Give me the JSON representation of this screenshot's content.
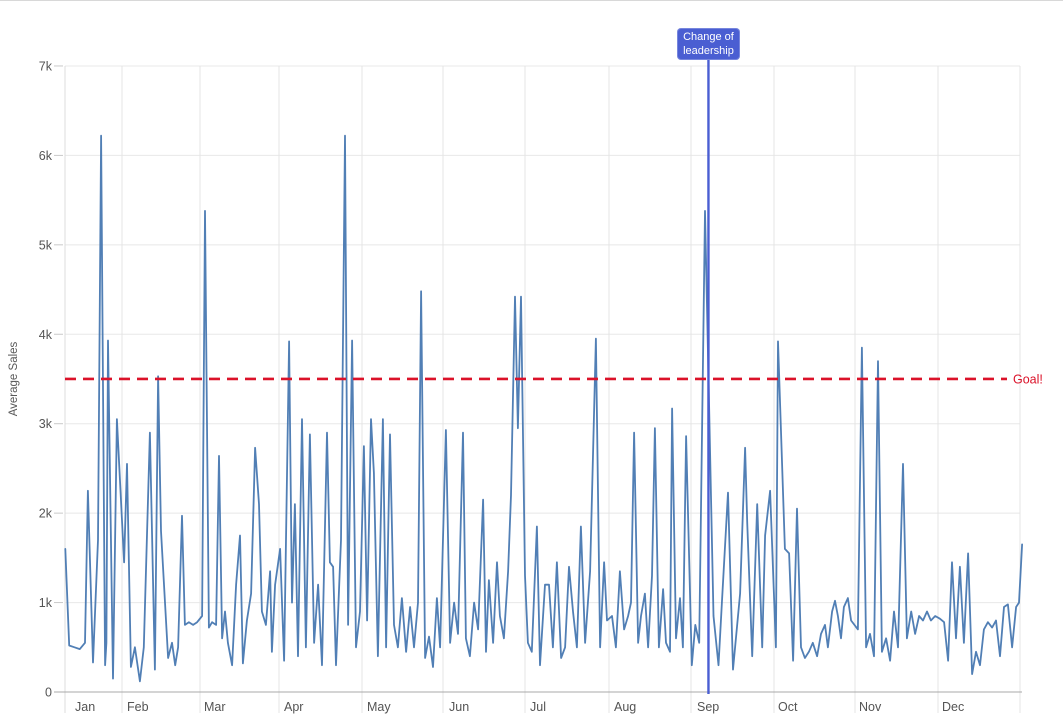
{
  "chart_data": {
    "type": "line",
    "title": "",
    "ylabel": "Average Sales",
    "value_unit": "thousands (k)",
    "grid": true,
    "legend": "none",
    "x_axis": {
      "unit": "day-of-year",
      "months": [
        "Jan",
        "Feb",
        "Mar",
        "Apr",
        "May",
        "Jun",
        "Jul",
        "Aug",
        "Sep",
        "Oct",
        "Nov",
        "Dec"
      ]
    },
    "y_axis": {
      "min": 0,
      "max": 7000,
      "tick_labels": [
        "0",
        "1k",
        "2k",
        "3k",
        "4k",
        "5k",
        "6k",
        "7k"
      ]
    },
    "reference_lines": [
      {
        "label": "Goal!",
        "value": 3.5,
        "color": "#db1229",
        "style": "dashed"
      }
    ],
    "annotations": [
      {
        "label": "Change of leadership",
        "day": 246,
        "color": "#4a5ed2"
      }
    ],
    "series": [
      {
        "name": "Average Sales",
        "color": "#4878b1",
        "points": [
          [
            2,
            1.6
          ],
          [
            3.5,
            0.52
          ],
          [
            5.5,
            0.5
          ],
          [
            7.5,
            0.48
          ],
          [
            9.5,
            0.55
          ],
          [
            10.6,
            2.25
          ],
          [
            12.5,
            0.33
          ],
          [
            14.4,
            1.7
          ],
          [
            15.6,
            6.22
          ],
          [
            17.1,
            0.3
          ],
          [
            17.6,
            0.55
          ],
          [
            18.2,
            3.93
          ],
          [
            20.1,
            0.15
          ],
          [
            21.6,
            3.05
          ],
          [
            24.3,
            1.45
          ],
          [
            25.4,
            2.55
          ],
          [
            26.9,
            0.28
          ],
          [
            28.4,
            0.5
          ],
          [
            30.3,
            0.12
          ],
          [
            31.8,
            0.5
          ],
          [
            34.1,
            2.9
          ],
          [
            36,
            0.25
          ],
          [
            37.2,
            3.53
          ],
          [
            38.3,
            1.8
          ],
          [
            41,
            0.38
          ],
          [
            42.5,
            0.55
          ],
          [
            43.7,
            0.3
          ],
          [
            44.8,
            0.5
          ],
          [
            46.3,
            1.97
          ],
          [
            47.4,
            0.75
          ],
          [
            48.9,
            0.78
          ],
          [
            50.5,
            0.75
          ],
          [
            52,
            0.78
          ],
          [
            53.9,
            0.85
          ],
          [
            55,
            5.38
          ],
          [
            56.5,
            0.72
          ],
          [
            57.7,
            0.78
          ],
          [
            59.2,
            0.75
          ],
          [
            60.3,
            2.64
          ],
          [
            61.5,
            0.6
          ],
          [
            62.6,
            0.9
          ],
          [
            63.7,
            0.55
          ],
          [
            65.3,
            0.3
          ],
          [
            66.8,
            1.2
          ],
          [
            68.3,
            1.75
          ],
          [
            69.4,
            0.32
          ],
          [
            70.9,
            0.8
          ],
          [
            72.5,
            1.1
          ],
          [
            74,
            2.73
          ],
          [
            75.5,
            2.1
          ],
          [
            76.6,
            0.9
          ],
          [
            78.1,
            0.75
          ],
          [
            79.7,
            1.35
          ],
          [
            80.4,
            0.45
          ],
          [
            81.6,
            1.2
          ],
          [
            83.5,
            1.6
          ],
          [
            85,
            0.35
          ],
          [
            86.9,
            3.92
          ],
          [
            88,
            1.0
          ],
          [
            89.1,
            2.1
          ],
          [
            90.3,
            0.4
          ],
          [
            91.8,
            3.05
          ],
          [
            93.3,
            0.5
          ],
          [
            94.8,
            2.88
          ],
          [
            96.4,
            0.55
          ],
          [
            97.9,
            1.2
          ],
          [
            99.4,
            0.3
          ],
          [
            101.3,
            2.9
          ],
          [
            102.4,
            1.45
          ],
          [
            103.6,
            1.4
          ],
          [
            104.7,
            0.3
          ],
          [
            106.6,
            1.7
          ],
          [
            108.1,
            6.22
          ],
          [
            109.3,
            0.75
          ],
          [
            110.8,
            3.93
          ],
          [
            112.3,
            0.5
          ],
          [
            113.8,
            0.9
          ],
          [
            115.3,
            2.75
          ],
          [
            116.5,
            0.8
          ],
          [
            118,
            3.05
          ],
          [
            119.1,
            2.45
          ],
          [
            120.6,
            0.4
          ],
          [
            122.5,
            3.05
          ],
          [
            123.7,
            0.5
          ],
          [
            125.2,
            2.88
          ],
          [
            126.7,
            0.75
          ],
          [
            128.2,
            0.5
          ],
          [
            129.7,
            1.05
          ],
          [
            131.3,
            0.45
          ],
          [
            132.8,
            0.95
          ],
          [
            134.3,
            0.5
          ],
          [
            135.8,
            1.0
          ],
          [
            137,
            4.48
          ],
          [
            138.5,
            0.38
          ],
          [
            140,
            0.62
          ],
          [
            141.5,
            0.28
          ],
          [
            143,
            1.05
          ],
          [
            144.2,
            0.5
          ],
          [
            146.4,
            2.93
          ],
          [
            148,
            0.55
          ],
          [
            149.5,
            1.0
          ],
          [
            151,
            0.65
          ],
          [
            152.9,
            2.9
          ],
          [
            154,
            0.6
          ],
          [
            155.5,
            0.4
          ],
          [
            157.1,
            1.0
          ],
          [
            158.6,
            0.7
          ],
          [
            160.5,
            2.15
          ],
          [
            161.6,
            0.45
          ],
          [
            162.7,
            1.25
          ],
          [
            164.3,
            0.55
          ],
          [
            165.8,
            1.45
          ],
          [
            166.9,
            0.85
          ],
          [
            168.4,
            0.6
          ],
          [
            170,
            1.35
          ],
          [
            171.1,
            2.2
          ],
          [
            172.6,
            4.42
          ],
          [
            173.7,
            2.95
          ],
          [
            174.9,
            4.42
          ],
          [
            176.4,
            1.3
          ],
          [
            177.5,
            0.55
          ],
          [
            179,
            0.45
          ],
          [
            180.9,
            1.85
          ],
          [
            182.1,
            0.3
          ],
          [
            184,
            1.2
          ],
          [
            185.5,
            1.2
          ],
          [
            187,
            0.5
          ],
          [
            188.5,
            1.45
          ],
          [
            190.1,
            0.38
          ],
          [
            191.6,
            0.5
          ],
          [
            193.1,
            1.4
          ],
          [
            194.6,
            0.9
          ],
          [
            196.1,
            0.5
          ],
          [
            197.6,
            1.85
          ],
          [
            199.2,
            0.55
          ],
          [
            201.1,
            1.35
          ],
          [
            203.3,
            3.95
          ],
          [
            204.9,
            0.5
          ],
          [
            206.4,
            1.45
          ],
          [
            207.5,
            0.8
          ],
          [
            209.4,
            0.85
          ],
          [
            210.9,
            0.5
          ],
          [
            212.4,
            1.35
          ],
          [
            214,
            0.7
          ],
          [
            215.5,
            0.85
          ],
          [
            216.6,
            1.0
          ],
          [
            217.8,
            2.9
          ],
          [
            219.3,
            0.55
          ],
          [
            220.4,
            0.85
          ],
          [
            221.9,
            1.1
          ],
          [
            223.1,
            0.5
          ],
          [
            224.6,
            1.3
          ],
          [
            225.7,
            2.95
          ],
          [
            227.2,
            0.5
          ],
          [
            228.8,
            1.15
          ],
          [
            229.9,
            0.55
          ],
          [
            231.4,
            0.45
          ],
          [
            232.2,
            3.17
          ],
          [
            233.7,
            0.6
          ],
          [
            235.2,
            1.05
          ],
          [
            236.3,
            0.5
          ],
          [
            237.5,
            2.86
          ],
          [
            239.7,
            0.3
          ],
          [
            241,
            0.75
          ],
          [
            242.5,
            0.55
          ],
          [
            244.7,
            5.38
          ],
          [
            247.9,
            0.85
          ],
          [
            249.8,
            0.3
          ],
          [
            251.1,
            1.0
          ],
          [
            253.4,
            2.23
          ],
          [
            255.3,
            0.25
          ],
          [
            258,
            1.1
          ],
          [
            259.9,
            2.73
          ],
          [
            260.7,
            1.9
          ],
          [
            262.6,
            0.4
          ],
          [
            264.5,
            2.1
          ],
          [
            266.4,
            0.5
          ],
          [
            267.5,
            1.75
          ],
          [
            269.4,
            2.25
          ],
          [
            271.6,
            0.5
          ],
          [
            272.4,
            3.92
          ],
          [
            275,
            1.6
          ],
          [
            276.6,
            1.55
          ],
          [
            278.1,
            0.35
          ],
          [
            279.6,
            2.05
          ],
          [
            281.1,
            0.5
          ],
          [
            282.6,
            0.38
          ],
          [
            284.1,
            0.45
          ],
          [
            285.6,
            0.55
          ],
          [
            287.2,
            0.4
          ],
          [
            288.7,
            0.65
          ],
          [
            290.2,
            0.75
          ],
          [
            291.3,
            0.5
          ],
          [
            292.9,
            0.9
          ],
          [
            294,
            1.02
          ],
          [
            295.1,
            0.85
          ],
          [
            296.3,
            0.6
          ],
          [
            297.4,
            0.95
          ],
          [
            298.9,
            1.05
          ],
          [
            300.1,
            0.8
          ],
          [
            302.7,
            0.7
          ],
          [
            304.2,
            3.85
          ],
          [
            305.8,
            0.5
          ],
          [
            307.3,
            0.65
          ],
          [
            308.8,
            0.4
          ],
          [
            310.3,
            3.7
          ],
          [
            311.8,
            0.45
          ],
          [
            313.4,
            0.6
          ],
          [
            314.9,
            0.35
          ],
          [
            316.4,
            0.9
          ],
          [
            317.9,
            0.5
          ],
          [
            319.8,
            2.55
          ],
          [
            321.3,
            0.6
          ],
          [
            322.9,
            0.9
          ],
          [
            324.4,
            0.65
          ],
          [
            325.9,
            0.85
          ],
          [
            327.4,
            0.8
          ],
          [
            328.9,
            0.9
          ],
          [
            330.4,
            0.8
          ],
          [
            332,
            0.85
          ],
          [
            333.8,
            0.82
          ],
          [
            335.4,
            0.78
          ],
          [
            336.9,
            0.35
          ],
          [
            338.4,
            1.45
          ],
          [
            339.9,
            0.6
          ],
          [
            341.4,
            1.4
          ],
          [
            342.9,
            0.55
          ],
          [
            344.5,
            1.55
          ],
          [
            346,
            0.2
          ],
          [
            347.5,
            0.45
          ],
          [
            349,
            0.3
          ],
          [
            350.5,
            0.7
          ],
          [
            352,
            0.78
          ],
          [
            353.6,
            0.72
          ],
          [
            355.1,
            0.8
          ],
          [
            356.6,
            0.4
          ],
          [
            358.1,
            0.95
          ],
          [
            359.6,
            0.98
          ],
          [
            361.2,
            0.5
          ],
          [
            362.7,
            0.95
          ],
          [
            363.8,
            1.0
          ],
          [
            365,
            1.65
          ]
        ]
      }
    ]
  }
}
